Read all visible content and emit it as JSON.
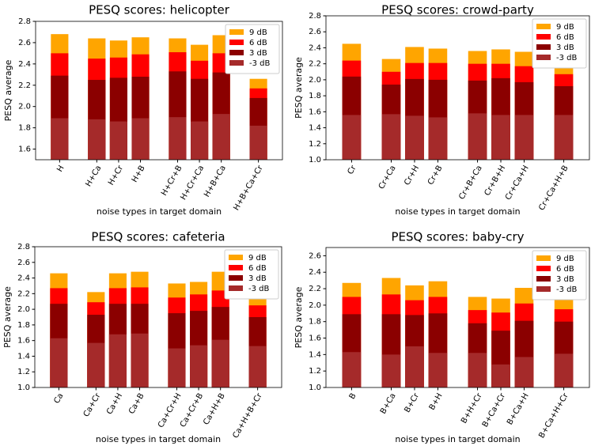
{
  "chart_data": [
    {
      "type": "bar",
      "title": "PESQ scores: helicopter",
      "x_label": "noise types in target domain",
      "y_label": "PESQ average",
      "legend": "upper right",
      "categories": [
        "H",
        null,
        "H+Ca",
        "H+Cr",
        "H+B",
        null,
        "H+Cr+B",
        "H+Cr+Ca",
        "H+B+Ca",
        null,
        "H+B+Ca+Cr"
      ],
      "ylim": [
        1.5,
        2.8
      ],
      "yticks": [
        1.6,
        1.8,
        {
          "value": 2,
          "label": "2.0"
        },
        2.2,
        2.4,
        2.6,
        2.8
      ],
      "series": [
        {
          "name": "9 dB",
          "color": "#ffa500",
          "values": [
            2.68,
            null,
            2.64,
            2.62,
            2.65,
            null,
            2.64,
            2.58,
            2.67,
            null,
            2.26
          ]
        },
        {
          "name": "6 dB",
          "color": "#ff0000",
          "values": [
            2.5,
            null,
            2.45,
            2.46,
            2.49,
            null,
            2.51,
            2.43,
            2.5,
            null,
            2.17
          ]
        },
        {
          "name": "3 dB",
          "color": "#8b0000",
          "values": [
            2.29,
            null,
            2.25,
            2.27,
            2.28,
            null,
            2.33,
            2.26,
            2.32,
            null,
            2.08
          ]
        },
        {
          "name": "-3 dB",
          "color": "#a52a2a",
          "values": [
            1.89,
            null,
            1.88,
            1.86,
            1.89,
            null,
            1.9,
            1.86,
            1.93,
            null,
            1.82
          ]
        }
      ]
    },
    {
      "type": "bar",
      "title": "PESQ scores: crowd-party",
      "x_label": "noise types in target domain",
      "y_label": "PESQ average",
      "legend": "upper right",
      "categories": [
        "Cr",
        null,
        "Cr+Ca",
        "Cr+H",
        "Cr+B",
        null,
        "Cr+B+Ca",
        "Cr+B+H",
        "Cr+Ca+H",
        null,
        "Cr+Ca+H+B"
      ],
      "ylim": [
        1.0,
        2.8
      ],
      "yticks": [
        {
          "value": 1,
          "label": "1.0"
        },
        1.2,
        1.4,
        1.6,
        1.8,
        {
          "value": 2,
          "label": "2.0"
        },
        2.2,
        2.4,
        2.6,
        2.8
      ],
      "series": [
        {
          "name": "9 dB",
          "color": "#ffa500",
          "values": [
            2.45,
            null,
            2.26,
            2.41,
            2.39,
            null,
            2.36,
            2.38,
            2.35,
            null,
            2.17
          ]
        },
        {
          "name": "6 dB",
          "color": "#ff0000",
          "values": [
            2.24,
            null,
            2.1,
            2.21,
            2.21,
            null,
            2.2,
            2.2,
            2.17,
            null,
            2.07
          ]
        },
        {
          "name": "3 dB",
          "color": "#8b0000",
          "values": [
            2.04,
            null,
            1.94,
            2.01,
            2.0,
            null,
            1.99,
            2.02,
            1.97,
            null,
            1.92
          ]
        },
        {
          "name": "-3 dB",
          "color": "#a52a2a",
          "values": [
            1.56,
            null,
            1.57,
            1.55,
            1.53,
            null,
            1.58,
            1.56,
            1.56,
            null,
            1.56
          ]
        }
      ]
    },
    {
      "type": "bar",
      "title": "PESQ scores: cafeteria",
      "x_label": "noise types in target domain",
      "y_label": "PESQ average",
      "legend": "upper right",
      "categories": [
        "Ca",
        null,
        "Ca+Cr",
        "Ca+H",
        "Ca+B",
        null,
        "Ca+Cr+H",
        "Ca+Cr+B",
        "Ca+H+B",
        null,
        "Ca+H+B+Cr"
      ],
      "ylim": [
        1.0,
        2.8
      ],
      "yticks": [
        {
          "value": 1,
          "label": "1.0"
        },
        1.2,
        1.4,
        1.6,
        1.8,
        {
          "value": 2,
          "label": "2.0"
        },
        2.2,
        2.4,
        2.6,
        2.8
      ],
      "series": [
        {
          "name": "9 dB",
          "color": "#ffa500",
          "values": [
            2.46,
            null,
            2.22,
            2.46,
            2.48,
            null,
            2.33,
            2.35,
            2.48,
            null,
            2.16
          ]
        },
        {
          "name": "6 dB",
          "color": "#ff0000",
          "values": [
            2.27,
            null,
            2.09,
            2.27,
            2.28,
            null,
            2.15,
            2.19,
            2.24,
            null,
            2.05
          ]
        },
        {
          "name": "3 dB",
          "color": "#8b0000",
          "values": [
            2.07,
            null,
            1.93,
            2.07,
            2.07,
            null,
            1.95,
            1.98,
            2.03,
            null,
            1.9
          ]
        },
        {
          "name": "-3 dB",
          "color": "#a52a2a",
          "values": [
            1.63,
            null,
            1.57,
            1.68,
            1.69,
            null,
            1.5,
            1.54,
            1.61,
            null,
            1.53
          ]
        }
      ]
    },
    {
      "type": "bar",
      "title": "PESQ scores: baby-cry",
      "x_label": "noise types in target domain",
      "y_label": "PESQ average",
      "legend": "upper right",
      "categories": [
        "B",
        null,
        "B+Ca",
        "B+Cr",
        "B+H",
        null,
        "B+H+Cr",
        "B+Ca+Cr",
        "B+Ca+H",
        null,
        "B+Ca+H+Cr"
      ],
      "ylim": [
        1.0,
        2.7
      ],
      "yticks": [
        {
          "value": 1,
          "label": "1.0"
        },
        1.2,
        1.4,
        1.6,
        1.8,
        {
          "value": 2,
          "label": "2.0"
        },
        2.2,
        2.4,
        2.6
      ],
      "series": [
        {
          "name": "9 dB",
          "color": "#ffa500",
          "values": [
            2.27,
            null,
            2.33,
            2.24,
            2.29,
            null,
            2.1,
            2.08,
            2.21,
            null,
            2.09
          ]
        },
        {
          "name": "6 dB",
          "color": "#ff0000",
          "values": [
            2.1,
            null,
            2.13,
            2.06,
            2.1,
            null,
            1.94,
            1.91,
            2.02,
            null,
            1.95
          ]
        },
        {
          "name": "3 dB",
          "color": "#8b0000",
          "values": [
            1.89,
            null,
            1.89,
            1.88,
            1.9,
            null,
            1.78,
            1.69,
            1.81,
            null,
            1.8
          ]
        },
        {
          "name": "-3 dB",
          "color": "#a52a2a",
          "values": [
            1.43,
            null,
            1.4,
            1.5,
            1.42,
            null,
            1.42,
            1.28,
            1.37,
            null,
            1.41
          ]
        }
      ]
    }
  ]
}
